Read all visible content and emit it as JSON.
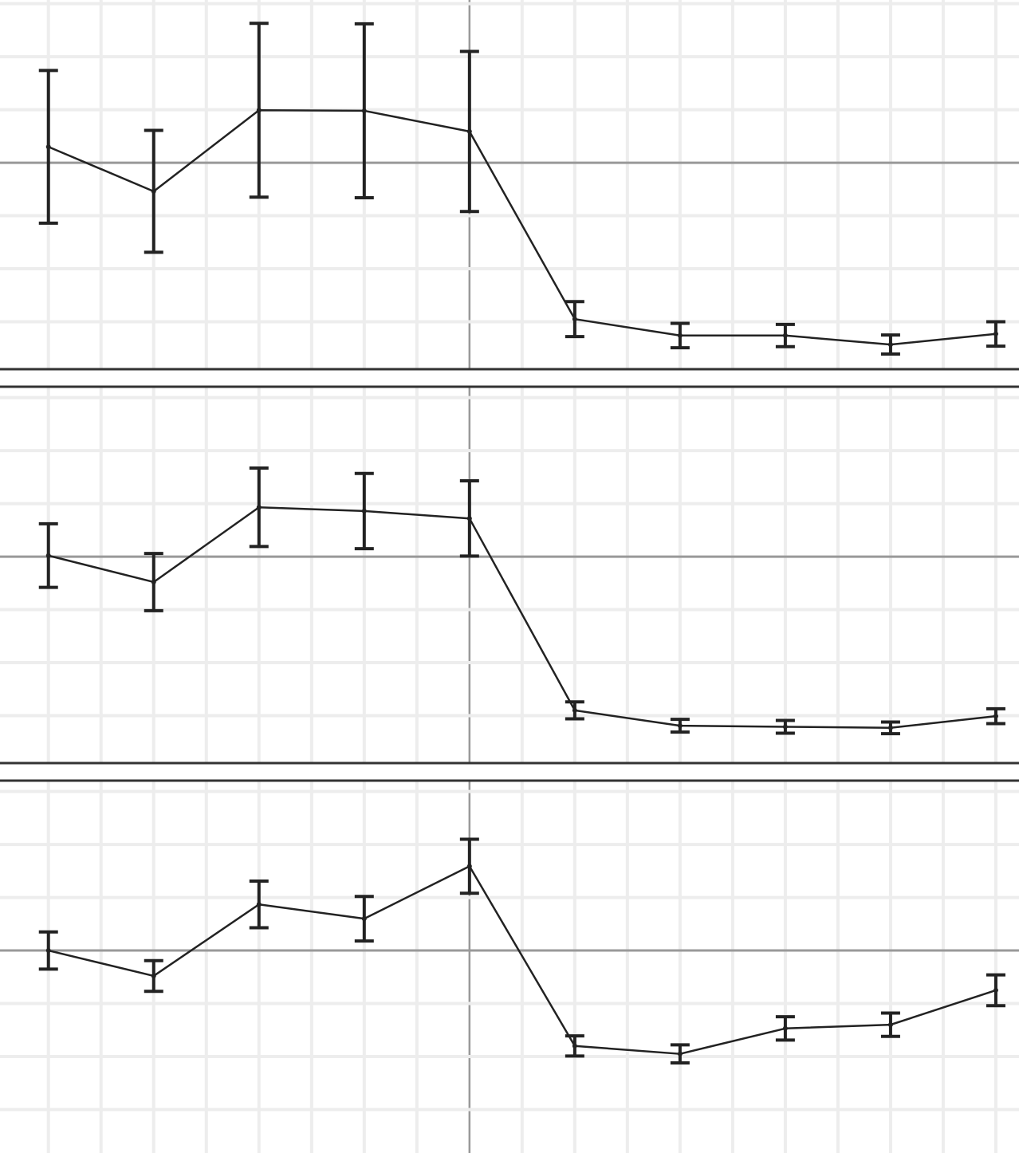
{
  "chart_data": [
    {
      "type": "line",
      "x": [
        -8,
        -6,
        -4,
        -2,
        0,
        2,
        4,
        6,
        8,
        10
      ],
      "series": [
        {
          "color": "#222222",
          "values": [
            0.3,
            -0.54,
            0.99,
            0.98,
            0.59,
            -2.95,
            -3.26,
            -3.26,
            -3.43,
            -3.23
          ],
          "errors": [
            1.44,
            1.15,
            1.64,
            1.64,
            1.51,
            0.33,
            0.23,
            0.21,
            0.18,
            0.23
          ]
        }
      ],
      "xlim": [
        -8.92,
        10.44
      ],
      "xticks": [
        -8,
        -7,
        -6,
        -5,
        -4,
        -3,
        -2,
        -1,
        0,
        1,
        2,
        3,
        4,
        5,
        6,
        7,
        8,
        9,
        10
      ],
      "ylim": [
        -3.91,
        3.07
      ],
      "yticks": [
        -3,
        -2,
        -1,
        0,
        1,
        2,
        3
      ],
      "grid": true
    },
    {
      "type": "line",
      "x": [
        -8,
        -6,
        -4,
        -2,
        0,
        2,
        4,
        6,
        8,
        10
      ],
      "series": [
        {
          "color": "#222222",
          "values": [
            0.02,
            -0.48,
            0.93,
            0.86,
            0.72,
            -2.9,
            -3.19,
            -3.21,
            -3.23,
            -3.01
          ],
          "errors": [
            0.6,
            0.54,
            0.74,
            0.71,
            0.71,
            0.16,
            0.12,
            0.12,
            0.11,
            0.14
          ]
        }
      ],
      "xlim": [
        -8.92,
        10.44
      ],
      "xticks": [
        -8,
        -7,
        -6,
        -5,
        -4,
        -3,
        -2,
        -1,
        0,
        1,
        2,
        3,
        4,
        5,
        6,
        7,
        8,
        9,
        10
      ],
      "ylim": [
        -3.91,
        3.22
      ],
      "yticks": [
        -3,
        -2,
        -1,
        0,
        1,
        2,
        3
      ],
      "grid": true
    },
    {
      "type": "line",
      "x": [
        -8,
        -6,
        -4,
        -2,
        0,
        2,
        4,
        6,
        8,
        10
      ],
      "series": [
        {
          "color": "#222222",
          "values": [
            0,
            -0.48,
            0.87,
            0.6,
            1.59,
            -1.8,
            -1.95,
            -1.47,
            -1.4,
            -0.75
          ],
          "errors": [
            0.35,
            0.29,
            0.44,
            0.42,
            0.51,
            0.19,
            0.17,
            0.22,
            0.22,
            0.29
          ]
        }
      ],
      "xlim": [
        -8.92,
        10.44
      ],
      "xticks": [
        -8,
        -7,
        -6,
        -5,
        -4,
        -3,
        -2,
        -1,
        0,
        1,
        2,
        3,
        4,
        5,
        6,
        7,
        8,
        9,
        10
      ],
      "ylim": [
        -3.82,
        3.22
      ],
      "yticks": [
        -3,
        -2,
        -1,
        0,
        1,
        2,
        3
      ],
      "grid": true
    }
  ]
}
